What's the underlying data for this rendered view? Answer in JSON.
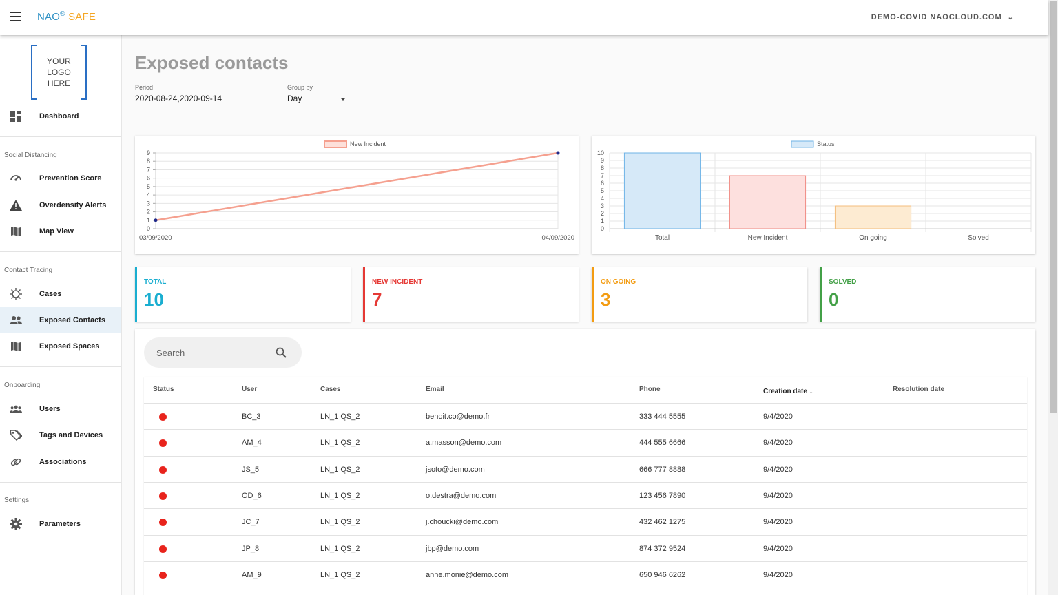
{
  "header": {
    "brand_nao": "NAO",
    "brand_reg": "®",
    "brand_safe": "SAFE",
    "domain": "DEMO-COVID NAOCLOUD.COM",
    "domain_chevron": "⌄"
  },
  "sidebar": {
    "logo_text": [
      "YOUR",
      "LOGO",
      "HERE"
    ],
    "dashboard": "Dashboard",
    "section_social": "Social Distancing",
    "prevention_score": "Prevention Score",
    "overdensity_alerts": "Overdensity Alerts",
    "map_view": "Map View",
    "section_contact": "Contact Tracing",
    "cases": "Cases",
    "exposed_contacts": "Exposed Contacts",
    "exposed_spaces": "Exposed Spaces",
    "section_onboarding": "Onboarding",
    "users": "Users",
    "tags_devices": "Tags and Devices",
    "associations": "Associations",
    "section_settings": "Settings",
    "parameters": "Parameters"
  },
  "main": {
    "title": "Exposed contacts",
    "period_label": "Period",
    "period_value": "2020-08-24,2020-09-14",
    "group_label": "Group by",
    "group_value": "Day"
  },
  "chart_data": [
    {
      "type": "line",
      "legend": [
        "New Incident"
      ],
      "x": [
        "03/09/2020",
        "04/09/2020"
      ],
      "series": [
        {
          "name": "New Incident",
          "values": [
            1,
            9
          ]
        }
      ],
      "ylim": [
        0,
        9
      ],
      "yticks": [
        0,
        1,
        2,
        3,
        4,
        5,
        6,
        7,
        8,
        9
      ],
      "colors": {
        "line": "#f5a08f",
        "point": "#1f2a8a"
      },
      "grid": true,
      "legend_position": "top"
    },
    {
      "type": "bar",
      "legend": [
        "Status"
      ],
      "categories": [
        "Total",
        "New Incident",
        "On going",
        "Solved"
      ],
      "values": [
        10,
        7,
        3,
        0
      ],
      "ylim": [
        0,
        10
      ],
      "yticks": [
        0,
        1,
        2,
        3,
        4,
        5,
        6,
        7,
        8,
        9,
        10
      ],
      "colors": {
        "fills": [
          "#d6e9f8",
          "#fde0de",
          "#fdebd2",
          "#e8f5e9"
        ],
        "strokes": [
          "#6fb3e6",
          "#f08c84",
          "#f4bd7c",
          "#9ccc9e"
        ],
        "legend_fill": "#d6e9f8",
        "legend_stroke": "#6fb3e6"
      },
      "grid": true,
      "legend_position": "top"
    }
  ],
  "stats": [
    {
      "title": "TOTAL",
      "value": "10",
      "color": "#1aaed0"
    },
    {
      "title": "NEW INCIDENT",
      "value": "7",
      "color": "#e53935"
    },
    {
      "title": "ON GOING",
      "value": "3",
      "color": "#f39c12"
    },
    {
      "title": "SOLVED",
      "value": "0",
      "color": "#43a047"
    }
  ],
  "search": {
    "placeholder": "Search"
  },
  "table": {
    "headers": [
      "Status",
      "User",
      "Cases",
      "Email",
      "Phone",
      "Creation date",
      "Resolution date"
    ],
    "sort_arrow": "↓",
    "rows": [
      {
        "status": "red",
        "user": "BC_3",
        "cases": "LN_1 QS_2",
        "email": "benoit.co@demo.fr",
        "phone": "333 444 5555",
        "created": "9/4/2020",
        "resolved": ""
      },
      {
        "status": "red",
        "user": "AM_4",
        "cases": "LN_1 QS_2",
        "email": "a.masson@demo.com",
        "phone": "444 555 6666",
        "created": "9/4/2020",
        "resolved": ""
      },
      {
        "status": "red",
        "user": "JS_5",
        "cases": "LN_1 QS_2",
        "email": "jsoto@demo.com",
        "phone": "666 777 8888",
        "created": "9/4/2020",
        "resolved": ""
      },
      {
        "status": "red",
        "user": "OD_6",
        "cases": "LN_1 QS_2",
        "email": "o.destra@demo.com",
        "phone": "123 456 7890",
        "created": "9/4/2020",
        "resolved": ""
      },
      {
        "status": "red",
        "user": "JC_7",
        "cases": "LN_1 QS_2",
        "email": "j.choucki@demo.com",
        "phone": "432 462 1275",
        "created": "9/4/2020",
        "resolved": ""
      },
      {
        "status": "red",
        "user": "JP_8",
        "cases": "LN_1 QS_2",
        "email": "jbp@demo.com",
        "phone": "874 372 9524",
        "created": "9/4/2020",
        "resolved": ""
      },
      {
        "status": "red",
        "user": "AM_9",
        "cases": "LN_1 QS_2",
        "email": "anne.monie@demo.com",
        "phone": "650 946 6262",
        "created": "9/4/2020",
        "resolved": ""
      }
    ]
  }
}
